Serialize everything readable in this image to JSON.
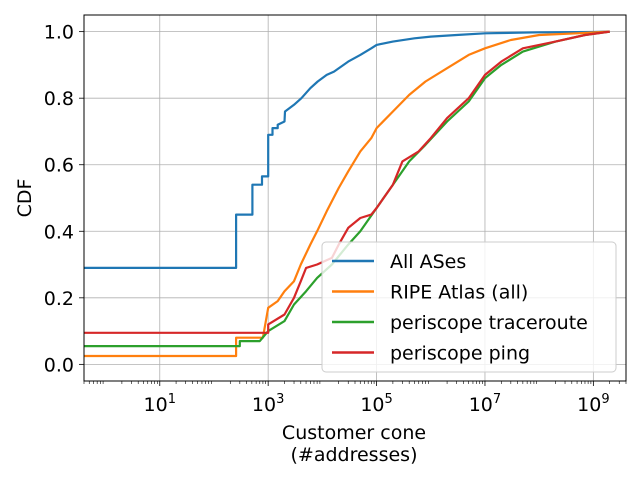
{
  "chart_data": {
    "type": "line",
    "title": "",
    "xlabel": "Customer cone",
    "xlabel_line2": "(#addresses)",
    "ylabel": "CDF",
    "xscale": "log",
    "xlim": [
      0.4,
      4000000000.0
    ],
    "ylim": [
      -0.05,
      1.05
    ],
    "grid": true,
    "legend_position": "lower-right",
    "x_ticks": [
      {
        "value": 10,
        "base": "10",
        "exp": "1"
      },
      {
        "value": 1000,
        "base": "10",
        "exp": "3"
      },
      {
        "value": 100000,
        "base": "10",
        "exp": "5"
      },
      {
        "value": 10000000,
        "base": "10",
        "exp": "7"
      },
      {
        "value": 1000000000,
        "base": "10",
        "exp": "9"
      }
    ],
    "y_ticks": [
      "0.0",
      "0.2",
      "0.4",
      "0.6",
      "0.8",
      "1.0"
    ],
    "series": [
      {
        "name": "All ASes",
        "color": "#1f77b4",
        "points": [
          [
            0.4,
            0.29
          ],
          [
            256,
            0.29
          ],
          [
            256,
            0.45
          ],
          [
            512,
            0.45
          ],
          [
            512,
            0.54
          ],
          [
            768,
            0.54
          ],
          [
            768,
            0.565
          ],
          [
            1000,
            0.565
          ],
          [
            1000,
            0.69
          ],
          [
            1200,
            0.69
          ],
          [
            1200,
            0.71
          ],
          [
            1500,
            0.71
          ],
          [
            1500,
            0.72
          ],
          [
            2000,
            0.73
          ],
          [
            2048,
            0.76
          ],
          [
            3000,
            0.78
          ],
          [
            4096,
            0.8
          ],
          [
            6000,
            0.83
          ],
          [
            8192,
            0.85
          ],
          [
            12000,
            0.87
          ],
          [
            16384,
            0.88
          ],
          [
            30000,
            0.91
          ],
          [
            50000,
            0.93
          ],
          [
            80000,
            0.95
          ],
          [
            100000,
            0.96
          ],
          [
            200000,
            0.97
          ],
          [
            500000,
            0.98
          ],
          [
            1000000,
            0.985
          ],
          [
            3000000,
            0.99
          ],
          [
            10000000,
            0.995
          ],
          [
            100000000,
            0.998
          ],
          [
            1000000000,
            0.999
          ],
          [
            2000000000,
            1.0
          ]
        ]
      },
      {
        "name": "RIPE Atlas (all)",
        "color": "#ff7f0e",
        "points": [
          [
            0.4,
            0.025
          ],
          [
            256,
            0.025
          ],
          [
            256,
            0.08
          ],
          [
            800,
            0.08
          ],
          [
            1000,
            0.17
          ],
          [
            1500,
            0.19
          ],
          [
            2000,
            0.22
          ],
          [
            3000,
            0.25
          ],
          [
            4000,
            0.3
          ],
          [
            6000,
            0.36
          ],
          [
            8000,
            0.4
          ],
          [
            12000,
            0.46
          ],
          [
            20000,
            0.53
          ],
          [
            30000,
            0.58
          ],
          [
            50000,
            0.64
          ],
          [
            80000,
            0.68
          ],
          [
            100000,
            0.71
          ],
          [
            200000,
            0.76
          ],
          [
            400000,
            0.81
          ],
          [
            800000,
            0.85
          ],
          [
            2000000,
            0.89
          ],
          [
            5000000,
            0.93
          ],
          [
            10000000,
            0.95
          ],
          [
            30000000,
            0.975
          ],
          [
            100000000,
            0.99
          ],
          [
            500000000,
            0.995
          ],
          [
            2000000000,
            1.0
          ]
        ]
      },
      {
        "name": "periscope traceroute",
        "color": "#2ca02c",
        "points": [
          [
            0.4,
            0.055
          ],
          [
            300,
            0.055
          ],
          [
            300,
            0.07
          ],
          [
            700,
            0.07
          ],
          [
            1000,
            0.1
          ],
          [
            2000,
            0.13
          ],
          [
            3000,
            0.18
          ],
          [
            5000,
            0.22
          ],
          [
            8000,
            0.26
          ],
          [
            15000,
            0.3
          ],
          [
            30000,
            0.36
          ],
          [
            50000,
            0.4
          ],
          [
            100000,
            0.47
          ],
          [
            200000,
            0.54
          ],
          [
            400000,
            0.61
          ],
          [
            800000,
            0.66
          ],
          [
            2000000,
            0.73
          ],
          [
            5000000,
            0.79
          ],
          [
            10000000,
            0.86
          ],
          [
            20000000,
            0.9
          ],
          [
            50000000,
            0.94
          ],
          [
            200000000,
            0.97
          ],
          [
            700000000,
            0.99
          ],
          [
            2000000000,
            1.0
          ]
        ]
      },
      {
        "name": "periscope ping",
        "color": "#d62728",
        "points": [
          [
            0.4,
            0.095
          ],
          [
            1000,
            0.095
          ],
          [
            1000,
            0.12
          ],
          [
            2000,
            0.15
          ],
          [
            3000,
            0.2
          ],
          [
            4000,
            0.25
          ],
          [
            5000,
            0.29
          ],
          [
            8000,
            0.3
          ],
          [
            15000,
            0.32
          ],
          [
            20000,
            0.36
          ],
          [
            30000,
            0.41
          ],
          [
            50000,
            0.44
          ],
          [
            80000,
            0.45
          ],
          [
            100000,
            0.47
          ],
          [
            200000,
            0.54
          ],
          [
            300000,
            0.61
          ],
          [
            600000,
            0.64
          ],
          [
            1000000,
            0.68
          ],
          [
            2000000,
            0.74
          ],
          [
            5000000,
            0.8
          ],
          [
            10000000,
            0.87
          ],
          [
            20000000,
            0.91
          ],
          [
            50000000,
            0.95
          ],
          [
            200000000,
            0.97
          ],
          [
            700000000,
            0.99
          ],
          [
            2000000000,
            1.0
          ]
        ]
      }
    ]
  }
}
